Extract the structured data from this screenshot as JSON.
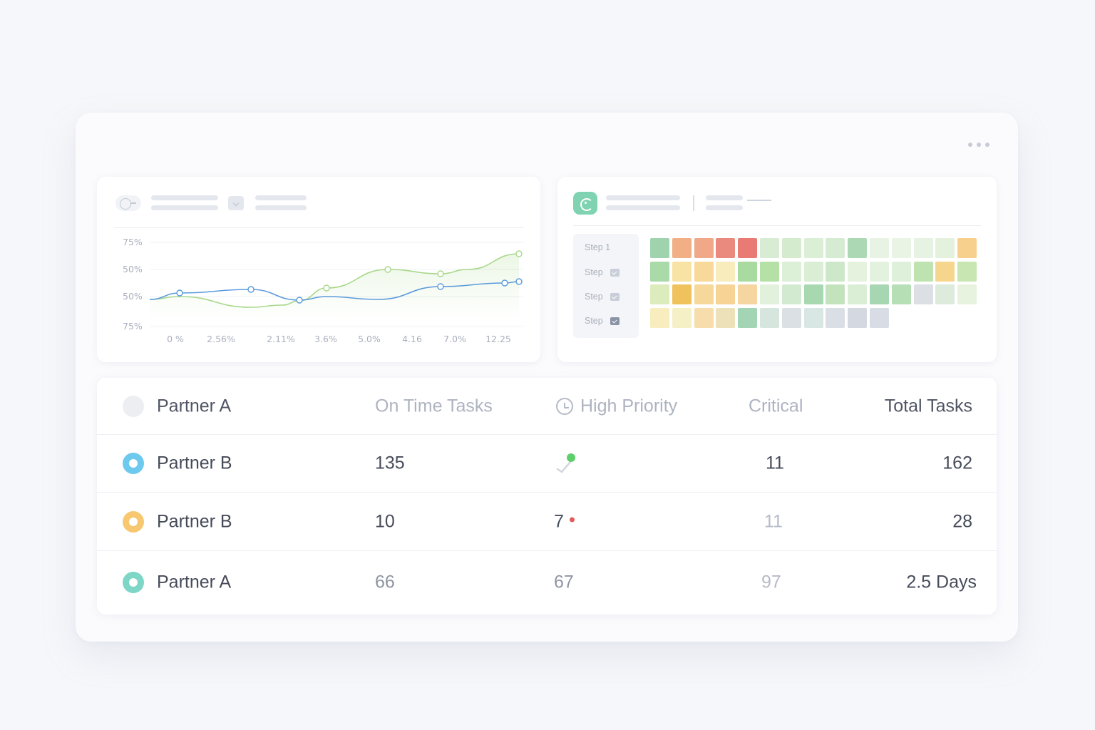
{
  "line_panel": {
    "y_ticks": [
      "75%",
      "50%",
      "50%",
      "75%"
    ],
    "x_ticks": [
      "0 %",
      "2.56%",
      "2.11%",
      "3.6%",
      "5.0%",
      "4.16",
      "7.0%",
      "12.25"
    ],
    "colors": {
      "green": "#a8d88a",
      "blue": "#5b9bdc"
    }
  },
  "heat_panel": {
    "steps": [
      {
        "label": "Step 1",
        "checkbox": false
      },
      {
        "label": "Step",
        "checkbox": true,
        "dark": false
      },
      {
        "label": "Step",
        "checkbox": true,
        "dark": false
      },
      {
        "label": "Step",
        "checkbox": true,
        "dark": true
      }
    ],
    "rows": [
      [
        "#9ed3ad",
        "#f2ae84",
        "#f0a888",
        "#ea8a7e",
        "#ea7b74",
        "#d7ecd3",
        "#d4ebcd",
        "#dbefd6",
        "#d6ecd2",
        "#acd9b3",
        "#e8f3e4",
        "#e9f4e5",
        "#e6f3e2",
        "#e4f2dd"
      ],
      [
        "#f7d08e",
        "#a9daa7",
        "#f9e3a4",
        "#f8d99a",
        "#f8ecbd",
        "#a9dba1",
        "#b5e1a6",
        "#dcefd7",
        "#d9eed5",
        "#cde8c8",
        "#e4f2de",
        "#e3f2df",
        "#dff0da",
        "#bfe2b1"
      ],
      [
        "#f6d68d",
        "#c7e6b2",
        "#dcecbd",
        "#f0c25e",
        "#f6d89a",
        "#f8d396",
        "#f6d6a0",
        "#e1f1dc",
        "#d2ead0",
        "#a8d8b0",
        "#c3e3bd",
        "#d9eed5",
        "#a7d6b3",
        "#b6dfb6"
      ],
      [
        "#dcdfe4",
        "#dcebdc",
        "#e8f3df",
        "#f8edbe",
        "#f6f0c6",
        "#f7dcac",
        "#ece1b8",
        "#a3d5b4",
        "#d6e6df",
        "#dbe0e5",
        "#d8e6e4",
        "#dadee5",
        "#d4d8e1",
        "#d8dce4"
      ]
    ]
  },
  "table": {
    "header": [
      "Partner A",
      "On Time Tasks",
      "High Priority",
      "Critical",
      "Total Tasks"
    ],
    "rows": [
      {
        "name": "Partner B",
        "on_time": "135",
        "high_priority": "",
        "critical": "11",
        "total": "162",
        "color": "#6ec9ee"
      },
      {
        "name": "Partner B",
        "on_time": "10",
        "high_priority": "7",
        "critical": "11",
        "total": "28",
        "color": "#f7c870"
      },
      {
        "name": "Partner A",
        "on_time": "66",
        "high_priority": "67",
        "critical": "97",
        "total": "2.5 Days",
        "color": "#7dd6c6"
      }
    ]
  }
}
